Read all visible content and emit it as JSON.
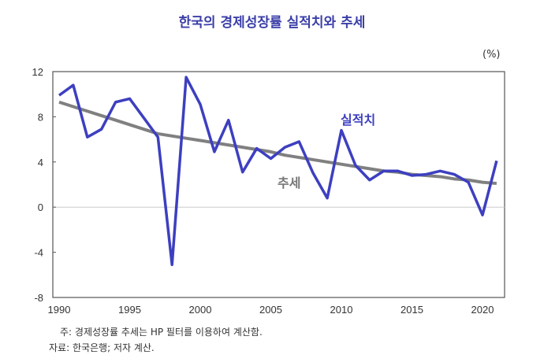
{
  "title": "한국의 경제성장률 실적치와 추세",
  "unit": "(%)",
  "notes": [
    "주: 경제성장률 추세는 HP 필터를 이용하여 계산함.",
    "자료: 한국은행; 저자 계산."
  ],
  "chart_data": {
    "type": "line",
    "title": "한국의 경제성장률 실적치와 추세",
    "ylabel": "(%)",
    "xlim": [
      1990,
      2021
    ],
    "ylim": [
      -8,
      12
    ],
    "yticks": [
      12,
      8,
      4,
      0,
      -4,
      -8
    ],
    "xticks": [
      1990,
      1995,
      2000,
      2005,
      2010,
      2015,
      2020
    ],
    "x": [
      1990,
      1991,
      1992,
      1993,
      1994,
      1995,
      1996,
      1997,
      1998,
      1999,
      2000,
      2001,
      2002,
      2003,
      2004,
      2005,
      2006,
      2007,
      2008,
      2009,
      2010,
      2011,
      2012,
      2013,
      2014,
      2015,
      2016,
      2017,
      2018,
      2019,
      2020,
      2021
    ],
    "series": [
      {
        "name": "실적치",
        "color": "#3d3fc0",
        "values": [
          9.9,
          10.8,
          6.2,
          6.9,
          9.3,
          9.6,
          7.9,
          6.2,
          -5.1,
          11.5,
          9.1,
          4.9,
          7.7,
          3.1,
          5.2,
          4.3,
          5.3,
          5.8,
          3.0,
          0.8,
          6.8,
          3.7,
          2.4,
          3.2,
          3.2,
          2.8,
          2.9,
          3.2,
          2.9,
          2.2,
          -0.7,
          4.1
        ]
      },
      {
        "name": "추세",
        "color": "#808080",
        "values": [
          9.3,
          8.9,
          8.5,
          8.1,
          7.7,
          7.3,
          6.9,
          6.5,
          6.3,
          6.1,
          5.9,
          5.7,
          5.5,
          5.3,
          5.1,
          4.9,
          4.6,
          4.4,
          4.2,
          4.0,
          3.8,
          3.6,
          3.4,
          3.2,
          3.1,
          2.9,
          2.8,
          2.7,
          2.5,
          2.4,
          2.2,
          2.1
        ]
      }
    ],
    "grid": false,
    "zero_line": true
  }
}
